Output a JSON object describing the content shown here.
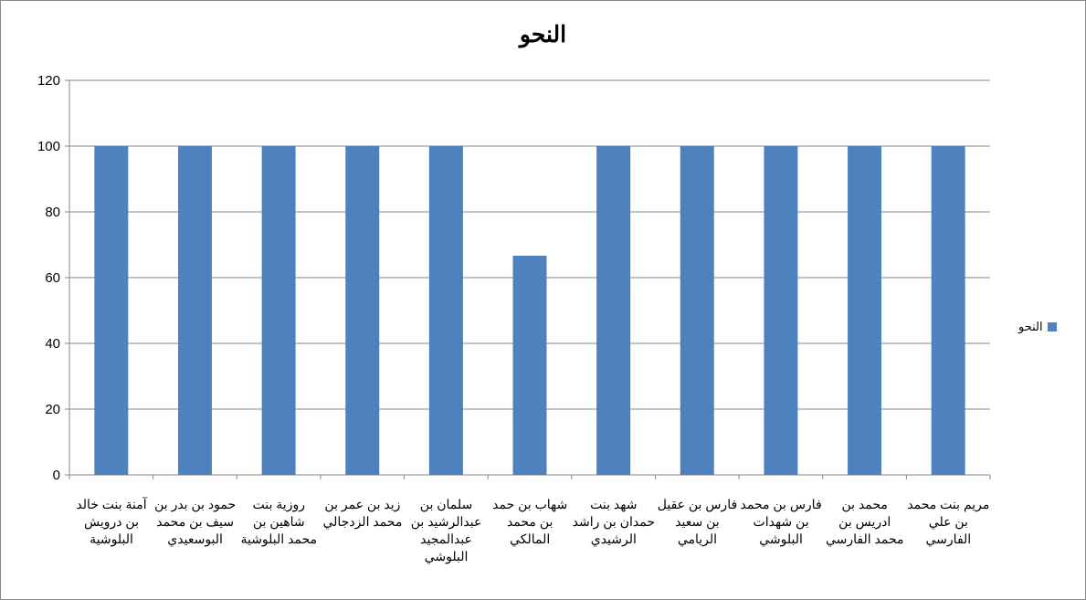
{
  "chart_data": {
    "type": "bar",
    "title": "النحو",
    "categories": [
      "آمنة بنت خالد بن درويش البلوشية",
      "حمود بن بدر بن سيف بن محمد البوسعيدي",
      "روزية بنت شاهين بن محمد البلوشية",
      "زيد بن عمر بن محمد الزدجالي",
      "سلمان بن عبدالرشيد بن عبدالمجيد البلوشي",
      "شهاب بن حمد بن محمد المالكي",
      "شهد بنت حمدان بن راشد الرشيدي",
      "فارس بن عقيل بن سعيد الريامي",
      "فارس بن محمد بن شهدات البلوشي",
      "محمد بن ادريس بن محمد الفارسي",
      "مريم بنت محمد بن علي الفارسي"
    ],
    "series": [
      {
        "name": "النحو",
        "values": [
          100,
          100,
          100,
          100,
          100,
          66.67,
          100,
          100,
          100,
          100,
          100
        ],
        "color": "#4f81bd"
      }
    ],
    "ylim": [
      0,
      120
    ],
    "yticks": [
      0,
      20,
      40,
      60,
      80,
      100,
      120
    ],
    "grid": true,
    "legend": "right"
  }
}
